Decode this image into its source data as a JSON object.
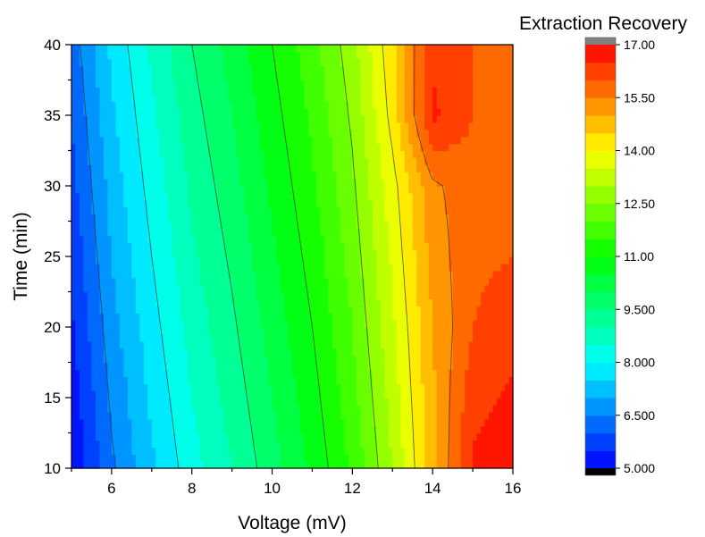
{
  "chart_data": {
    "type": "heatmap",
    "subtype": "filled-contour",
    "title": "",
    "xlabel": "Voltage (mV)",
    "ylabel": "Time (min)",
    "xlim": [
      5,
      16
    ],
    "ylim": [
      10,
      40
    ],
    "x_ticks": [
      6,
      8,
      10,
      12,
      14,
      16
    ],
    "y_ticks": [
      10,
      15,
      20,
      25,
      30,
      35,
      40
    ],
    "colorbar": {
      "title": "Extraction Recovery",
      "range": [
        5.0,
        17.0
      ],
      "tick_values": [
        5.0,
        6.5,
        8.0,
        9.5,
        11.0,
        12.5,
        14.0,
        15.5,
        17.0
      ],
      "tick_labels": [
        "5.000",
        "6.500",
        "8.000",
        "9.500",
        "11.00",
        "12.50",
        "14.00",
        "15.50",
        "17.00"
      ],
      "over_color": "#808080",
      "under_color": "#000000",
      "colormap": [
        "#0000ff",
        "#00ffff",
        "#00ff00",
        "#ffff00",
        "#ff0000"
      ]
    },
    "grid": false,
    "legend": "colorbar-right",
    "z_grid": {
      "x": [
        5,
        6,
        7,
        8,
        9,
        10,
        11,
        12,
        13,
        14,
        15,
        16
      ],
      "y": [
        10,
        15,
        20,
        25,
        30,
        35,
        40
      ],
      "z": [
        [
          5.0,
          6.4,
          7.4,
          8.3,
          9.0,
          9.8,
          10.6,
          11.6,
          13.0,
          14.8,
          16.6,
          16.9
        ],
        [
          5.2,
          6.6,
          7.6,
          8.5,
          9.2,
          10.0,
          10.8,
          11.8,
          13.2,
          14.9,
          16.3,
          16.6
        ],
        [
          5.4,
          6.8,
          7.8,
          8.7,
          9.4,
          10.2,
          11.0,
          12.0,
          13.4,
          15.0,
          16.0,
          16.3
        ],
        [
          5.6,
          7.0,
          8.0,
          8.9,
          9.6,
          10.4,
          11.2,
          12.2,
          13.6,
          15.2,
          15.9,
          16.0
        ],
        [
          5.8,
          7.2,
          8.2,
          9.1,
          9.8,
          10.6,
          11.4,
          12.4,
          13.8,
          15.4,
          15.8,
          15.8
        ],
        [
          6.0,
          7.4,
          8.4,
          9.3,
          10.0,
          10.8,
          11.6,
          12.6,
          14.2,
          16.6,
          16.0,
          15.8
        ],
        [
          6.2,
          7.6,
          8.6,
          9.5,
          10.2,
          11.0,
          11.8,
          12.8,
          14.4,
          16.4,
          16.0,
          15.9
        ]
      ]
    }
  }
}
